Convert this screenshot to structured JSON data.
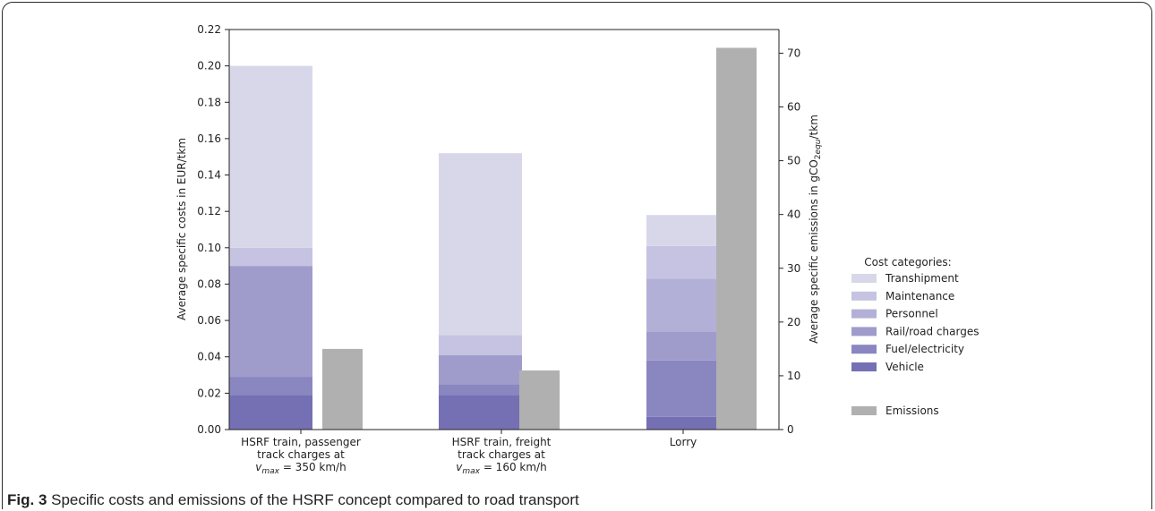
{
  "chart_data": {
    "type": "bar",
    "categories": [
      [
        "HSRF train, passenger",
        "track charges at",
        "v_max = 350 km/h"
      ],
      [
        "HSRF train, freight",
        "track charges at",
        "v_max = 160 km/h"
      ],
      [
        "Lorry"
      ]
    ],
    "cost_series": [
      {
        "name": "Vehicle",
        "color": "#7570b3",
        "values": [
          0.019,
          0.019,
          0.007
        ]
      },
      {
        "name": "Fuel/electricity",
        "color": "#8a86c0",
        "values": [
          0.01,
          0.006,
          0.031
        ]
      },
      {
        "name": "Rail/road charges",
        "color": "#9f9ccc",
        "values": [
          0.061,
          0.016,
          0.016
        ]
      },
      {
        "name": "Personnel",
        "color": "#b3b0d7",
        "values": [
          0.0,
          0.0,
          0.029
        ]
      },
      {
        "name": "Maintenance",
        "color": "#c5c3e1",
        "values": [
          0.01,
          0.011,
          0.018
        ]
      },
      {
        "name": "Transhipment",
        "color": "#d8d7ea",
        "values": [
          0.1,
          0.1,
          0.017
        ]
      }
    ],
    "emissions": {
      "name": "Emissions",
      "color": "#b0b0b0",
      "values": [
        15,
        11,
        71
      ]
    },
    "ylabel_left": "Average specific costs in EUR/tkm",
    "ylabel_right": "Average specific emissions in gCO2equ/tkm",
    "ylim_left": [
      0,
      0.22
    ],
    "ylim_right": [
      0,
      74.4
    ],
    "yticks_left": [
      "0.00",
      "0.02",
      "0.04",
      "0.06",
      "0.08",
      "0.10",
      "0.12",
      "0.14",
      "0.16",
      "0.18",
      "0.20",
      "0.22"
    ],
    "yticks_right": [
      "0",
      "10",
      "20",
      "30",
      "40",
      "50",
      "60",
      "70"
    ],
    "legend_title": "Cost categories:",
    "legend_order": [
      "Transhipment",
      "Maintenance",
      "Personnel",
      "Rail/road charges",
      "Fuel/electricity",
      "Vehicle"
    ],
    "grid": false
  },
  "caption": {
    "label": "Fig. 3",
    "text": "Specific costs and emissions of the HSRF concept compared to road transport"
  }
}
